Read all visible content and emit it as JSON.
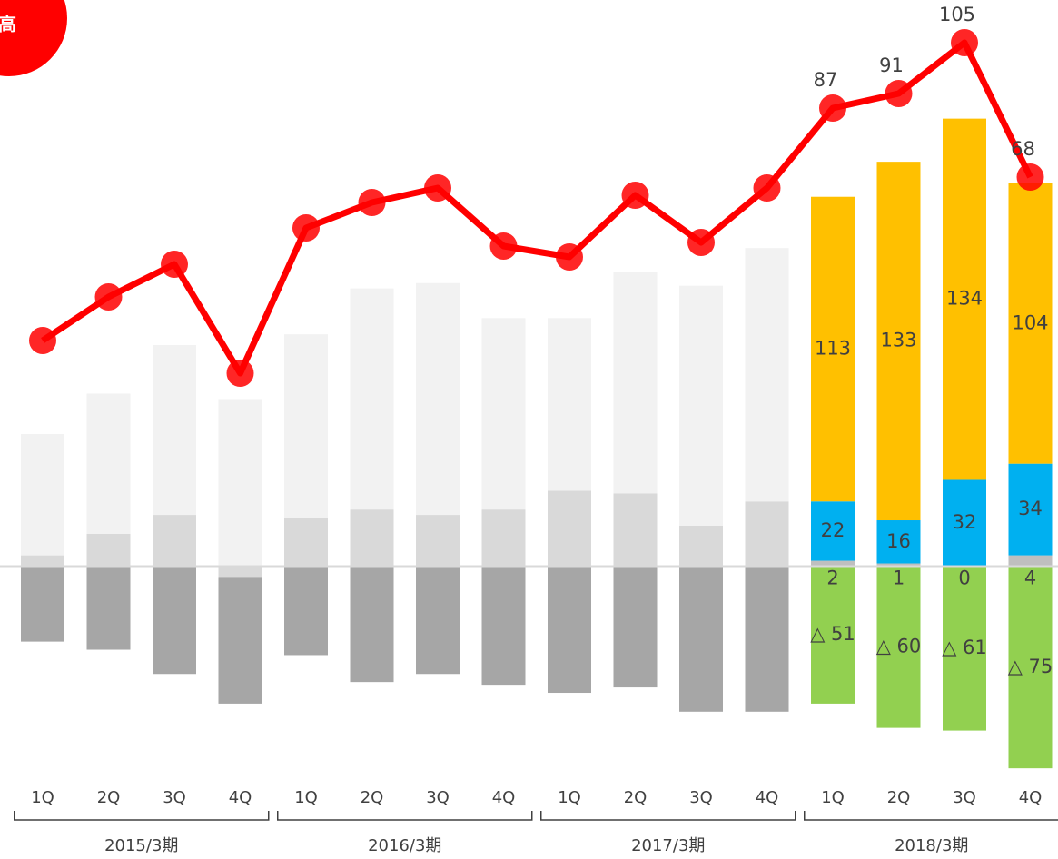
{
  "chart_data": {
    "type": "bar",
    "badge": "高",
    "categories": [
      "1Q",
      "2Q",
      "3Q",
      "4Q",
      "1Q",
      "2Q",
      "3Q",
      "4Q",
      "1Q",
      "2Q",
      "3Q",
      "4Q",
      "1Q",
      "2Q",
      "3Q",
      "4Q"
    ],
    "groups": [
      {
        "label": "2015/3期",
        "span": 4
      },
      {
        "label": "2016/3期",
        "span": 4
      },
      {
        "label": "2017/3期",
        "span": 4
      },
      {
        "label": "2018/3期",
        "span": 4
      }
    ],
    "ylim": [
      -80,
      210
    ],
    "y2lim": [
      -98.5,
      116.75
    ],
    "series": [
      {
        "color": "#d9d9d9",
        "values": [
          4,
          12,
          19,
          -4,
          18,
          21,
          19,
          21,
          28,
          27,
          15,
          24,
          null,
          null,
          null,
          null
        ]
      },
      {
        "color": "#bfbfbf",
        "show_labels": true,
        "values": [
          null,
          null,
          null,
          null,
          null,
          null,
          null,
          null,
          null,
          null,
          null,
          null,
          2,
          1,
          0,
          4
        ]
      },
      {
        "color": "#f2f2f2",
        "values": [
          45,
          52,
          63,
          62,
          68,
          82,
          86,
          71,
          64,
          82,
          89,
          94,
          null,
          null,
          null,
          null
        ]
      },
      {
        "color": "#a6a6a6",
        "values": [
          -28,
          -31,
          -40,
          -47,
          -33,
          -43,
          -40,
          -44,
          -47,
          -45,
          -54,
          -54,
          null,
          null,
          null,
          null
        ]
      },
      {
        "color": "#00b0f0",
        "show_labels": true,
        "values": [
          null,
          null,
          null,
          null,
          null,
          null,
          null,
          null,
          null,
          null,
          null,
          null,
          22,
          16,
          32,
          34
        ]
      },
      {
        "color": "#ffc000",
        "show_labels": true,
        "values": [
          null,
          null,
          null,
          null,
          null,
          null,
          null,
          null,
          null,
          null,
          null,
          null,
          113,
          133,
          134,
          104
        ]
      },
      {
        "color": "#92d050",
        "show_labels": true,
        "values": [
          null,
          null,
          null,
          null,
          null,
          null,
          null,
          null,
          null,
          null,
          null,
          null,
          -51,
          -60,
          -61,
          -75
        ],
        "value_labels": [
          null,
          null,
          null,
          null,
          null,
          null,
          null,
          null,
          null,
          null,
          null,
          null,
          "△ 51",
          "△ 60",
          "△ 61",
          "△ 75"
        ]
      },
      {
        "type": "line",
        "axis": "y2",
        "color": "#ff0000",
        "values": [
          23,
          35,
          44,
          14,
          54,
          61,
          65,
          49,
          46,
          63,
          50,
          65,
          87,
          91,
          105,
          68
        ],
        "value_labels": [
          null,
          null,
          null,
          null,
          null,
          null,
          null,
          null,
          null,
          null,
          null,
          null,
          "87",
          "91",
          "105",
          "68"
        ]
      }
    ]
  }
}
